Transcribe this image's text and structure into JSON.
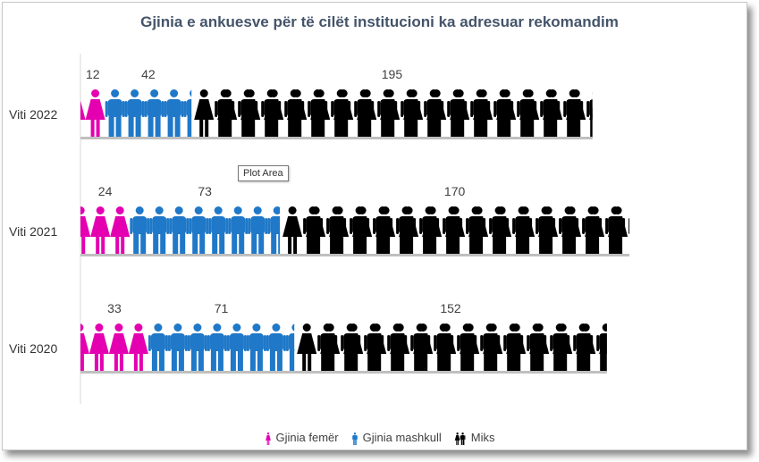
{
  "chart_data": {
    "type": "bar",
    "orientation": "horizontal",
    "stacked": true,
    "title": "Gjinia e ankuesve për të cilët institucioni ka adresuar rekomandim",
    "categories": [
      "Viti 2022",
      "Viti 2021",
      "Viti 2020"
    ],
    "series": [
      {
        "name": "Gjinia femër",
        "values": [
          12,
          24,
          33
        ],
        "color": "#e400b0",
        "icon": "female-person-icon"
      },
      {
        "name": "Gjinia mashkull",
        "values": [
          42,
          73,
          71
        ],
        "color": "#1f78c8",
        "icon": "male-person-icon"
      },
      {
        "name": "Miks",
        "values": [
          195,
          170,
          152
        ],
        "color": "#000000",
        "icon": "couple-icon"
      }
    ],
    "legend_position": "bottom",
    "grid": false
  },
  "ui": {
    "tooltip_text": "Plot Area"
  }
}
